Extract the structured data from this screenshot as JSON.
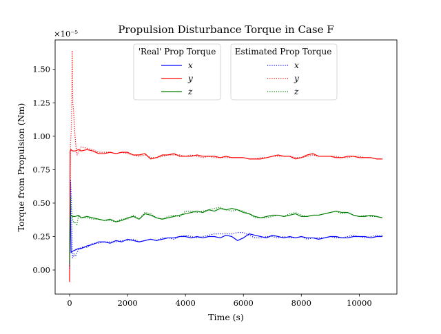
{
  "chart_data": {
    "type": "line",
    "title": "Propulsion Disturbance Torque in Case F",
    "xlabel": "Time (s)",
    "ylabel": "Torque from Propulsion (Nm)",
    "y_scale_label": "×10⁻⁵",
    "xlim": [
      -500,
      11300
    ],
    "ylim": [
      -0.18,
      1.72
    ],
    "xticks": [
      0,
      2000,
      4000,
      6000,
      8000,
      10000
    ],
    "yticks": [
      0.0,
      0.25,
      0.5,
      0.75,
      1.0,
      1.25,
      1.5
    ],
    "xtick_labels": [
      "0",
      "2000",
      "4000",
      "6000",
      "8000",
      "10000"
    ],
    "ytick_labels": [
      "0.00",
      "0.25",
      "0.50",
      "0.75",
      "1.00",
      "1.25",
      "1.50"
    ],
    "grid": false,
    "legends": [
      {
        "title": "'Real' Prop Torque",
        "entries": [
          "x",
          "y",
          "z"
        ]
      },
      {
        "title": "Estimated Prop Torque",
        "entries": [
          "x",
          "y",
          "z"
        ]
      }
    ],
    "colors": {
      "x": "#0000ff",
      "y": "#ff0000",
      "z": "#008000"
    },
    "series": [
      {
        "name": "x",
        "group": "real",
        "style": "solid",
        "color": "#0000ff",
        "x": [
          0,
          20,
          50,
          100,
          200,
          300,
          400,
          600,
          800,
          1000,
          1200,
          1400,
          1600,
          1800,
          2000,
          2200,
          2400,
          2600,
          2800,
          3000,
          3200,
          3400,
          3600,
          3800,
          4000,
          4200,
          4400,
          4600,
          4800,
          5000,
          5200,
          5400,
          5600,
          5800,
          6000,
          6200,
          6400,
          6600,
          6800,
          7000,
          7200,
          7400,
          7600,
          7800,
          8000,
          8200,
          8400,
          8600,
          8800,
          9000,
          9200,
          9400,
          9600,
          9800,
          10000,
          10200,
          10400,
          10600,
          10800
        ],
        "y": [
          0.02,
          0.65,
          0.13,
          0.14,
          0.15,
          0.16,
          0.16,
          0.18,
          0.19,
          0.21,
          0.21,
          0.2,
          0.22,
          0.21,
          0.23,
          0.22,
          0.21,
          0.22,
          0.23,
          0.22,
          0.23,
          0.24,
          0.24,
          0.25,
          0.25,
          0.24,
          0.25,
          0.24,
          0.25,
          0.25,
          0.24,
          0.26,
          0.25,
          0.22,
          0.24,
          0.27,
          0.26,
          0.25,
          0.24,
          0.26,
          0.25,
          0.24,
          0.25,
          0.24,
          0.25,
          0.24,
          0.24,
          0.23,
          0.24,
          0.25,
          0.25,
          0.24,
          0.24,
          0.25,
          0.25,
          0.25,
          0.24,
          0.25,
          0.25
        ]
      },
      {
        "name": "y",
        "group": "real",
        "style": "solid",
        "color": "#ff0000",
        "x": [
          0,
          20,
          50,
          100,
          200,
          300,
          400,
          600,
          800,
          1000,
          1200,
          1400,
          1600,
          1800,
          2000,
          2200,
          2400,
          2600,
          2800,
          3000,
          3200,
          3400,
          3600,
          3800,
          4000,
          4200,
          4400,
          4600,
          4800,
          5000,
          5200,
          5400,
          5600,
          5800,
          6000,
          6200,
          6400,
          6600,
          6800,
          7000,
          7200,
          7400,
          7600,
          7800,
          8000,
          8200,
          8400,
          8600,
          8800,
          9000,
          9200,
          9400,
          9600,
          9800,
          10000,
          10200,
          10400,
          10600,
          10800
        ],
        "y": [
          -0.09,
          0.89,
          0.9,
          0.89,
          0.89,
          0.9,
          0.89,
          0.9,
          0.89,
          0.87,
          0.87,
          0.88,
          0.87,
          0.88,
          0.88,
          0.86,
          0.86,
          0.87,
          0.83,
          0.84,
          0.86,
          0.86,
          0.87,
          0.85,
          0.85,
          0.85,
          0.86,
          0.85,
          0.85,
          0.85,
          0.84,
          0.85,
          0.84,
          0.84,
          0.84,
          0.83,
          0.83,
          0.83,
          0.84,
          0.85,
          0.86,
          0.85,
          0.85,
          0.83,
          0.84,
          0.86,
          0.87,
          0.85,
          0.85,
          0.85,
          0.84,
          0.84,
          0.85,
          0.85,
          0.84,
          0.84,
          0.84,
          0.83,
          0.83
        ]
      },
      {
        "name": "z",
        "group": "real",
        "style": "solid",
        "color": "#008000",
        "x": [
          0,
          20,
          50,
          100,
          200,
          300,
          400,
          600,
          800,
          1000,
          1200,
          1400,
          1600,
          1800,
          2000,
          2200,
          2400,
          2600,
          2800,
          3000,
          3200,
          3400,
          3600,
          3800,
          4000,
          4200,
          4400,
          4600,
          4800,
          5000,
          5200,
          5400,
          5600,
          5800,
          6000,
          6200,
          6400,
          6600,
          6800,
          7000,
          7200,
          7400,
          7600,
          7800,
          8000,
          8200,
          8400,
          8600,
          8800,
          9000,
          9200,
          9400,
          9600,
          9800,
          10000,
          10200,
          10400,
          10600,
          10800
        ],
        "y": [
          0.05,
          0.4,
          0.41,
          0.4,
          0.4,
          0.41,
          0.39,
          0.4,
          0.39,
          0.38,
          0.37,
          0.38,
          0.36,
          0.37,
          0.39,
          0.4,
          0.38,
          0.42,
          0.41,
          0.39,
          0.38,
          0.39,
          0.4,
          0.41,
          0.42,
          0.43,
          0.44,
          0.43,
          0.45,
          0.44,
          0.46,
          0.45,
          0.46,
          0.45,
          0.43,
          0.42,
          0.4,
          0.39,
          0.4,
          0.41,
          0.41,
          0.4,
          0.41,
          0.42,
          0.4,
          0.4,
          0.41,
          0.41,
          0.42,
          0.43,
          0.44,
          0.43,
          0.43,
          0.41,
          0.4,
          0.4,
          0.41,
          0.4,
          0.39
        ]
      },
      {
        "name": "x",
        "group": "estimated",
        "style": "dotted",
        "color": "#0000ff",
        "x": [
          0,
          30,
          60,
          100,
          150,
          200,
          300,
          400,
          600,
          800,
          1000,
          1200,
          1400,
          1600,
          1800,
          2000,
          2200,
          2400,
          2600,
          2800,
          3000,
          3200,
          3400,
          3600,
          3800,
          4000,
          4200,
          4400,
          4600,
          4800,
          5000,
          5200,
          5400,
          5600,
          5800,
          6000,
          6200,
          6400,
          6600,
          6800,
          7000,
          7200,
          7400,
          7600,
          7800,
          8000,
          8200,
          8400,
          8600,
          8800,
          9000,
          9200,
          9400,
          9600,
          9800,
          10000,
          10200,
          10400,
          10600,
          10800
        ],
        "y": [
          0.01,
          0.67,
          0.55,
          0.09,
          0.12,
          0.1,
          0.15,
          0.17,
          0.17,
          0.2,
          0.2,
          0.21,
          0.21,
          0.21,
          0.22,
          0.22,
          0.23,
          0.21,
          0.22,
          0.23,
          0.22,
          0.24,
          0.24,
          0.23,
          0.25,
          0.26,
          0.25,
          0.24,
          0.25,
          0.26,
          0.27,
          0.27,
          0.27,
          0.27,
          0.28,
          0.28,
          0.26,
          0.24,
          0.24,
          0.25,
          0.25,
          0.24,
          0.25,
          0.24,
          0.24,
          0.25,
          0.23,
          0.24,
          0.24,
          0.24,
          0.25,
          0.24,
          0.24,
          0.25,
          0.26,
          0.25,
          0.24,
          0.25,
          0.26,
          0.26
        ]
      },
      {
        "name": "y",
        "group": "estimated",
        "style": "dotted",
        "color": "#ff0000",
        "x": [
          0,
          30,
          60,
          90,
          110,
          140,
          180,
          220,
          260,
          300,
          400,
          600,
          800,
          1000,
          1200,
          1400,
          1600,
          1800,
          2000,
          2200,
          2400,
          2600,
          2800,
          3000,
          3200,
          3400,
          3600,
          3800,
          4000,
          4200,
          4400,
          4600,
          4800,
          5000,
          5200,
          5400,
          5600,
          5800,
          6000,
          6200,
          6400,
          6600,
          6800,
          7000,
          7200,
          7400,
          7600,
          7800,
          8000,
          8200,
          8400,
          8600,
          8800,
          9000,
          9200,
          9400,
          9600,
          9800,
          10000,
          10200,
          10400,
          10600,
          10800
        ],
        "y": [
          -0.07,
          0.95,
          1.05,
          1.64,
          1.25,
          1.18,
          1.02,
          0.92,
          0.86,
          0.88,
          0.92,
          0.91,
          0.9,
          0.88,
          0.88,
          0.88,
          0.87,
          0.88,
          0.87,
          0.86,
          0.85,
          0.86,
          0.84,
          0.84,
          0.85,
          0.86,
          0.86,
          0.86,
          0.85,
          0.86,
          0.85,
          0.84,
          0.85,
          0.84,
          0.84,
          0.84,
          0.84,
          0.84,
          0.84,
          0.83,
          0.83,
          0.84,
          0.84,
          0.85,
          0.85,
          0.85,
          0.85,
          0.84,
          0.84,
          0.85,
          0.86,
          0.85,
          0.85,
          0.85,
          0.85,
          0.84,
          0.84,
          0.85,
          0.85,
          0.84,
          0.84,
          0.83,
          0.83
        ]
      },
      {
        "name": "z",
        "group": "estimated",
        "style": "dotted",
        "color": "#008000",
        "x": [
          0,
          30,
          60,
          100,
          150,
          200,
          250,
          300,
          400,
          600,
          800,
          1000,
          1200,
          1400,
          1600,
          1800,
          2000,
          2200,
          2400,
          2600,
          2800,
          3000,
          3200,
          3400,
          3600,
          3800,
          4000,
          4200,
          4400,
          4600,
          4800,
          5000,
          5200,
          5400,
          5600,
          5800,
          6000,
          6200,
          6400,
          6600,
          6800,
          7000,
          7200,
          7400,
          7600,
          7800,
          8000,
          8200,
          8400,
          8600,
          8800,
          9000,
          9200,
          9400,
          9600,
          9800,
          10000,
          10200,
          10400,
          10600,
          10800
        ],
        "y": [
          0.03,
          0.55,
          0.45,
          0.38,
          0.35,
          0.36,
          0.33,
          0.4,
          0.39,
          0.39,
          0.38,
          0.38,
          0.37,
          0.37,
          0.36,
          0.38,
          0.38,
          0.41,
          0.38,
          0.43,
          0.42,
          0.39,
          0.38,
          0.4,
          0.41,
          0.4,
          0.44,
          0.44,
          0.43,
          0.44,
          0.45,
          0.46,
          0.47,
          0.45,
          0.44,
          0.45,
          0.44,
          0.42,
          0.39,
          0.39,
          0.39,
          0.4,
          0.41,
          0.4,
          0.42,
          0.43,
          0.41,
          0.4,
          0.41,
          0.41,
          0.42,
          0.43,
          0.44,
          0.42,
          0.43,
          0.41,
          0.4,
          0.41,
          0.4,
          0.4,
          0.39
        ]
      }
    ]
  }
}
